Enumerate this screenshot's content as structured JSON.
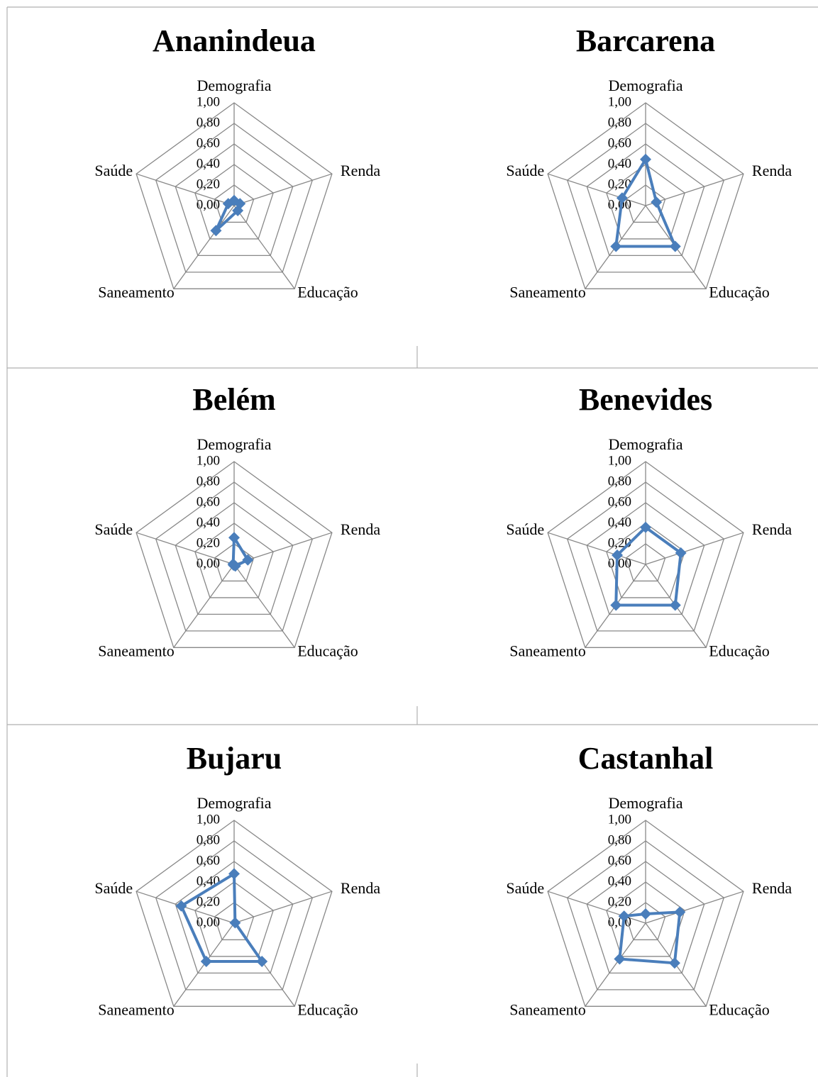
{
  "chart_data": [
    {
      "type": "radar",
      "title": "Ananindeua",
      "categories": [
        "Demografia",
        "Renda",
        "Educação",
        "Saneamento",
        "Saúde"
      ],
      "values": [
        0.05,
        0.06,
        0.06,
        0.3,
        0.06
      ],
      "color": "#4a7ebb",
      "ylim": [
        0,
        1
      ],
      "yticks": [
        {
          "value": 0,
          "label": "0,00"
        },
        {
          "value": 0.2,
          "label": "0,20"
        },
        {
          "value": 0.4,
          "label": "0,40"
        },
        {
          "value": 0.6,
          "label": "0,60"
        },
        {
          "value": 0.8,
          "label": "0,80"
        },
        {
          "value": 1,
          "label": "1,00"
        }
      ],
      "grid": true
    },
    {
      "type": "radar",
      "title": "Barcarena",
      "categories": [
        "Demografia",
        "Renda",
        "Educação",
        "Saneamento",
        "Saúde"
      ],
      "values": [
        0.45,
        0.11,
        0.49,
        0.49,
        0.24
      ],
      "color": "#4a7ebb",
      "ylim": [
        0,
        1
      ],
      "yticks": [
        {
          "value": 0,
          "label": "0,00"
        },
        {
          "value": 0.2,
          "label": "0,20"
        },
        {
          "value": 0.4,
          "label": "0,40"
        },
        {
          "value": 0.6,
          "label": "0,60"
        },
        {
          "value": 0.8,
          "label": "0,80"
        },
        {
          "value": 1,
          "label": "1,00"
        }
      ],
      "grid": true
    },
    {
      "type": "radar",
      "title": "Belém",
      "categories": [
        "Demografia",
        "Renda",
        "Educação",
        "Saneamento",
        "Saúde"
      ],
      "values": [
        0.26,
        0.14,
        0.02,
        0.01,
        0.01
      ],
      "color": "#4a7ebb",
      "ylim": [
        0,
        1
      ],
      "yticks": [
        {
          "value": 0,
          "label": "0,00"
        },
        {
          "value": 0.2,
          "label": "0,20"
        },
        {
          "value": 0.4,
          "label": "0,40"
        },
        {
          "value": 0.6,
          "label": "0,60"
        },
        {
          "value": 0.8,
          "label": "0,80"
        },
        {
          "value": 1,
          "label": "1,00"
        }
      ],
      "grid": true
    },
    {
      "type": "radar",
      "title": "Benevides",
      "categories": [
        "Demografia",
        "Renda",
        "Educação",
        "Saneamento",
        "Saúde"
      ],
      "values": [
        0.36,
        0.36,
        0.49,
        0.49,
        0.29
      ],
      "color": "#4a7ebb",
      "ylim": [
        0,
        1
      ],
      "yticks": [
        {
          "value": 0,
          "label": "0,00"
        },
        {
          "value": 0.2,
          "label": "0,20"
        },
        {
          "value": 0.4,
          "label": "0,40"
        },
        {
          "value": 0.6,
          "label": "0,60"
        },
        {
          "value": 0.8,
          "label": "0,80"
        },
        {
          "value": 1,
          "label": "1,00"
        }
      ],
      "grid": true
    },
    {
      "type": "radar",
      "title": "Bujaru",
      "categories": [
        "Demografia",
        "Renda",
        "Educação",
        "Saneamento",
        "Saúde"
      ],
      "values": [
        0.48,
        0.01,
        0.46,
        0.46,
        0.54
      ],
      "color": "#4a7ebb",
      "ylim": [
        0,
        1
      ],
      "yticks": [
        {
          "value": 0,
          "label": "0,00"
        },
        {
          "value": 0.2,
          "label": "0,20"
        },
        {
          "value": 0.4,
          "label": "0,40"
        },
        {
          "value": 0.6,
          "label": "0,60"
        },
        {
          "value": 0.8,
          "label": "0,80"
        },
        {
          "value": 1,
          "label": "1,00"
        }
      ],
      "grid": true
    },
    {
      "type": "radar",
      "title": "Castanhal",
      "categories": [
        "Demografia",
        "Renda",
        "Educação",
        "Saneamento",
        "Saúde"
      ],
      "values": [
        0.09,
        0.35,
        0.48,
        0.43,
        0.22
      ],
      "color": "#4a7ebb",
      "ylim": [
        0,
        1
      ],
      "yticks": [
        {
          "value": 0,
          "label": "0,00"
        },
        {
          "value": 0.2,
          "label": "0,20"
        },
        {
          "value": 0.4,
          "label": "0,40"
        },
        {
          "value": 0.6,
          "label": "0,60"
        },
        {
          "value": 0.8,
          "label": "0,80"
        },
        {
          "value": 1,
          "label": "1,00"
        }
      ],
      "grid": true
    }
  ]
}
